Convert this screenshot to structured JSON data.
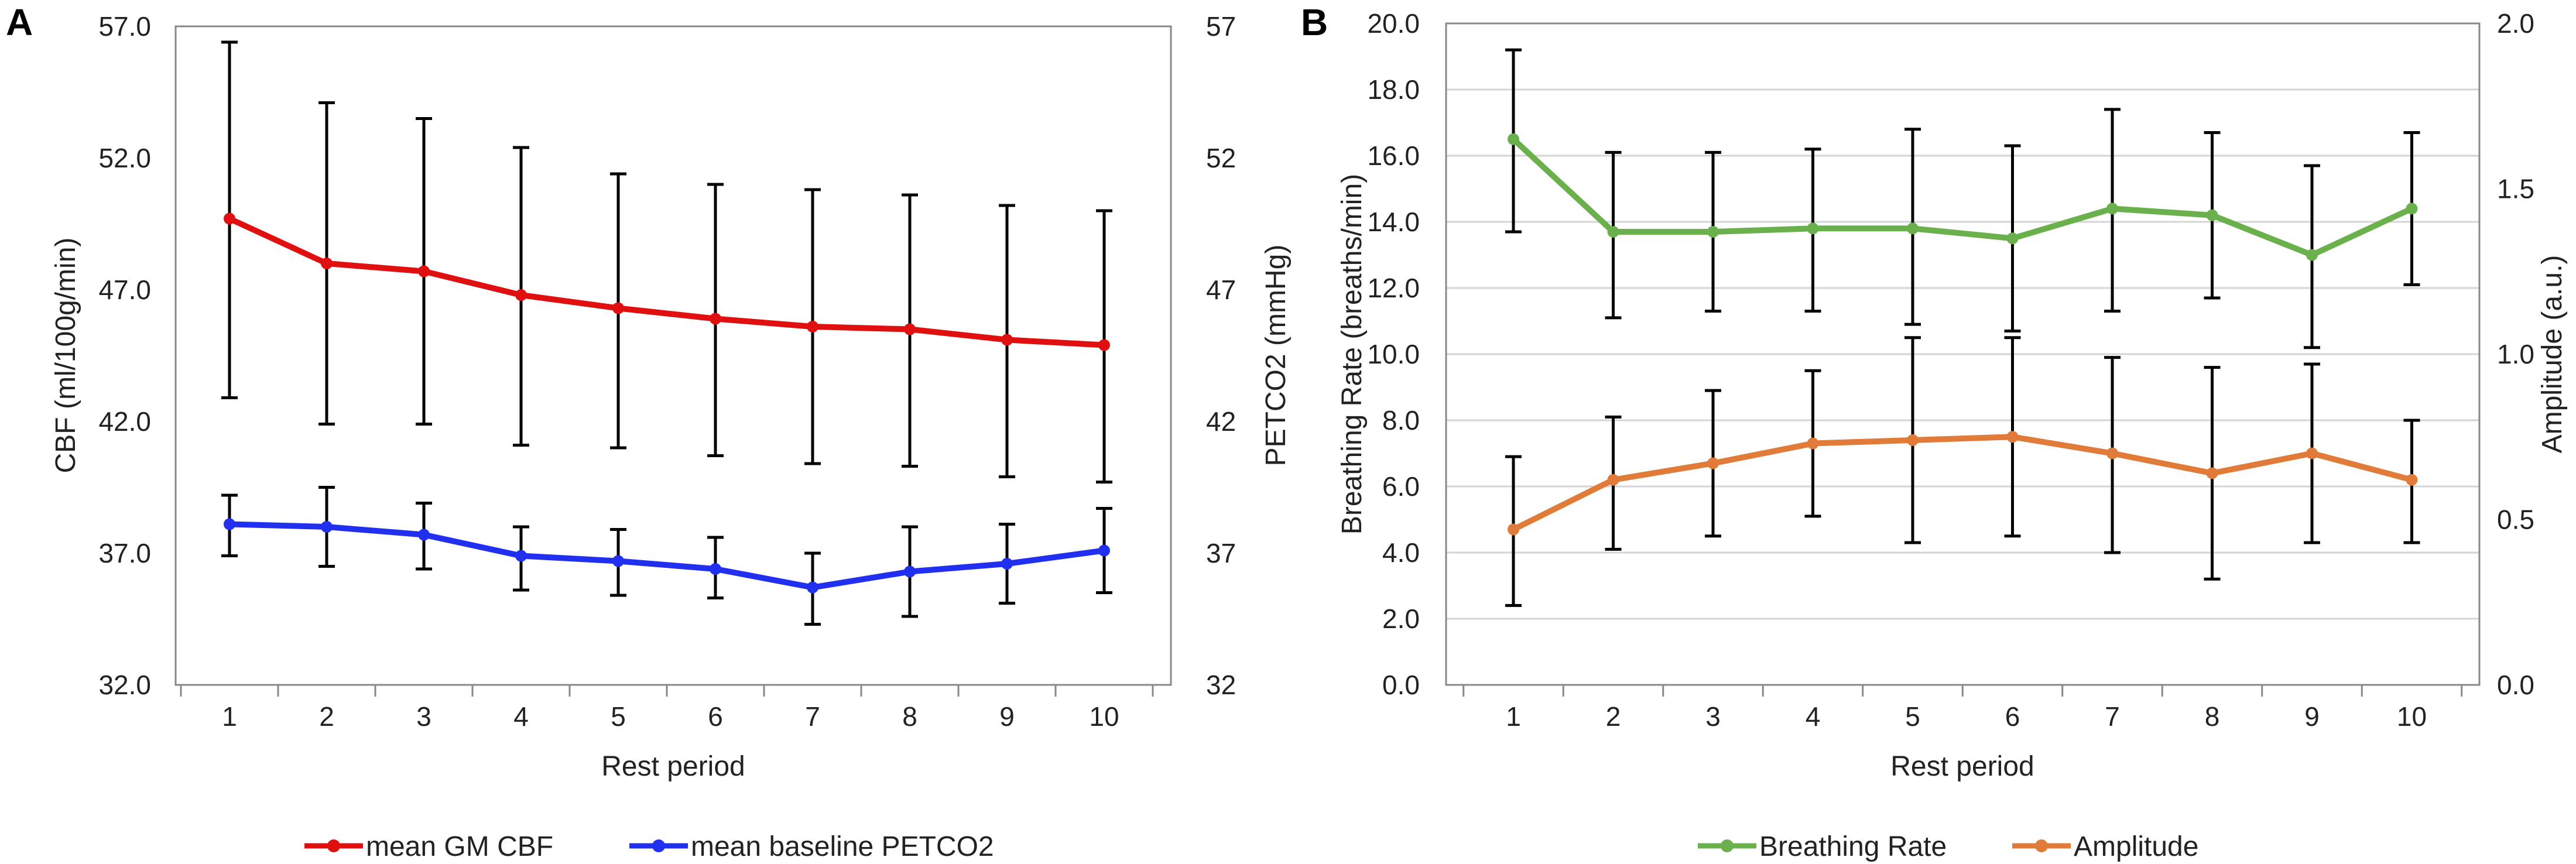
{
  "chart_data": [
    {
      "panel": "A",
      "type": "line",
      "xlabel": "Rest period",
      "ylabel": "CBF (ml/100g/min)",
      "y2label": "PETCO2 (mmHg)",
      "categories": [
        "1",
        "2",
        "3",
        "4",
        "5",
        "6",
        "7",
        "8",
        "9",
        "10"
      ],
      "ylim": [
        32.0,
        57.0
      ],
      "y2lim": [
        32,
        57
      ],
      "yticks": [
        "32.0",
        "37.0",
        "42.0",
        "47.0",
        "52.0",
        "57.0"
      ],
      "y2ticks": [
        "32",
        "37",
        "42",
        "47",
        "52",
        "57"
      ],
      "grid": false,
      "legend_position": "bottom",
      "series": [
        {
          "name": "mean GM CBF",
          "axis": "left",
          "color": "#e01010",
          "values": [
            49.7,
            48.0,
            47.7,
            46.8,
            46.3,
            45.9,
            45.6,
            45.5,
            45.1,
            44.9
          ],
          "err_low": [
            42.9,
            41.9,
            41.9,
            41.1,
            41.0,
            40.7,
            40.4,
            40.3,
            39.9,
            39.7
          ],
          "err_high": [
            56.4,
            54.1,
            53.5,
            52.4,
            51.4,
            51.0,
            50.8,
            50.6,
            50.2,
            50.0
          ]
        },
        {
          "name": "mean baseline PETCO2",
          "axis": "right",
          "color": "#2030ee",
          "values": [
            38.1,
            38.0,
            37.7,
            36.9,
            36.7,
            36.4,
            35.7,
            36.3,
            36.6,
            37.1
          ],
          "err_low": [
            36.9,
            36.5,
            36.4,
            35.6,
            35.4,
            35.3,
            34.3,
            34.6,
            35.1,
            35.5
          ],
          "err_high": [
            39.2,
            39.5,
            38.9,
            38.0,
            37.9,
            37.6,
            37.0,
            38.0,
            38.1,
            38.7
          ]
        }
      ]
    },
    {
      "panel": "B",
      "type": "line",
      "xlabel": "Rest period",
      "ylabel": "Breathing Rate (breaths/min)",
      "y2label": "Amplitude (a.u.)",
      "categories": [
        "1",
        "2",
        "3",
        "4",
        "5",
        "6",
        "7",
        "8",
        "9",
        "10"
      ],
      "ylim": [
        0.0,
        20.0
      ],
      "y2lim": [
        0.0,
        2.0
      ],
      "yticks": [
        "0.0",
        "2.0",
        "4.0",
        "6.0",
        "8.0",
        "10.0",
        "12.0",
        "14.0",
        "16.0",
        "18.0",
        "20.0"
      ],
      "y2ticks": [
        "0.0",
        "0.5",
        "1.0",
        "1.5",
        "2.0"
      ],
      "grid": true,
      "legend_position": "bottom",
      "series": [
        {
          "name": "Breathing Rate",
          "axis": "left",
          "color": "#6ab04c",
          "values": [
            16.5,
            13.7,
            13.7,
            13.8,
            13.8,
            13.5,
            14.4,
            14.2,
            13.0,
            14.4
          ],
          "err_low": [
            13.7,
            11.1,
            11.3,
            11.3,
            10.9,
            10.7,
            11.3,
            11.7,
            10.2,
            12.1
          ],
          "err_high": [
            19.2,
            16.1,
            16.1,
            16.2,
            16.8,
            16.3,
            17.4,
            16.7,
            15.7,
            16.7
          ]
        },
        {
          "name": "Amplitude",
          "axis": "right",
          "color": "#e07b39",
          "values": [
            0.47,
            0.62,
            0.67,
            0.73,
            0.74,
            0.75,
            0.7,
            0.64,
            0.7,
            0.62
          ],
          "err_low": [
            0.24,
            0.41,
            0.45,
            0.51,
            0.43,
            0.45,
            0.4,
            0.32,
            0.43,
            0.43
          ],
          "err_high": [
            0.69,
            0.81,
            0.89,
            0.95,
            1.05,
            1.05,
            0.99,
            0.96,
            0.97,
            0.8
          ]
        }
      ]
    }
  ]
}
